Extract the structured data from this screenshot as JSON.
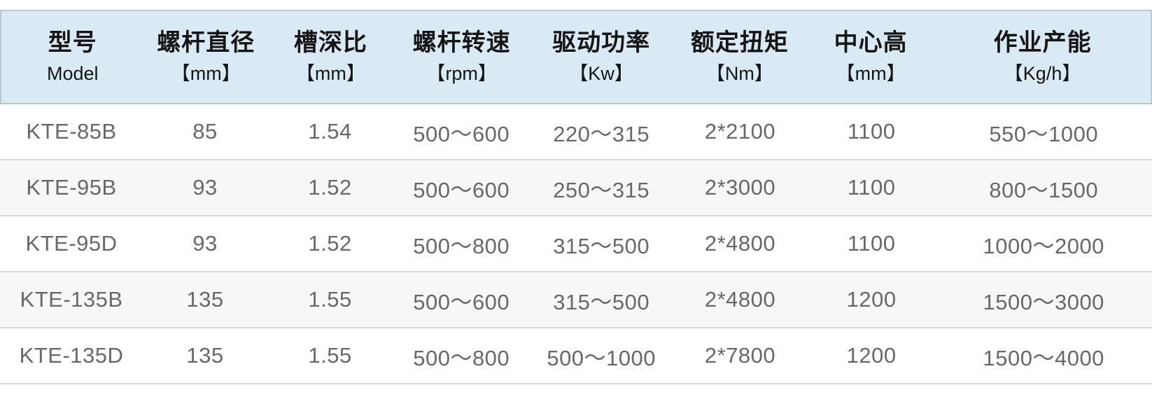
{
  "table": {
    "columns": [
      {
        "zh": "型号",
        "sub": "Model"
      },
      {
        "zh": "螺杆直径",
        "sub": "【mm】"
      },
      {
        "zh": "槽深比",
        "sub": "【mm】"
      },
      {
        "zh": "螺杆转速",
        "sub": "【rpm】"
      },
      {
        "zh": "驱动功率",
        "sub": "【Kw】"
      },
      {
        "zh": "额定扭矩",
        "sub": "【Nm】"
      },
      {
        "zh": "中心高",
        "sub": "【mm】"
      },
      {
        "zh": "作业产能",
        "sub": "【Kg/h】"
      }
    ],
    "rows": [
      [
        "KTE-85B",
        "85",
        "1.54",
        "500〜600",
        "220〜315",
        "2*2100",
        "1100",
        "550〜1000"
      ],
      [
        "KTE-95B",
        "93",
        "1.52",
        "500〜600",
        "250〜315",
        "2*3000",
        "1100",
        "800〜1500"
      ],
      [
        "KTE-95D",
        "93",
        "1.52",
        "500〜800",
        "315〜500",
        "2*4800",
        "1100",
        "1000〜2000"
      ],
      [
        "KTE-135B",
        "135",
        "1.55",
        "500〜600",
        "315〜500",
        "2*4800",
        "1200",
        "1500〜3000"
      ],
      [
        "KTE-135D",
        "135",
        "1.55",
        "500〜800",
        "500〜1000",
        "2*7800",
        "1200",
        "1500〜4000"
      ]
    ],
    "colors": {
      "header_bg": "#d9eaf5",
      "header_border": "#b7c9d4",
      "header_bottom_border": "#c3c3c3",
      "row_alt_bg": "#f7f7f7",
      "row_separator": "#dcdcdc",
      "header_text": "#151515",
      "cell_text": "#686868"
    }
  }
}
